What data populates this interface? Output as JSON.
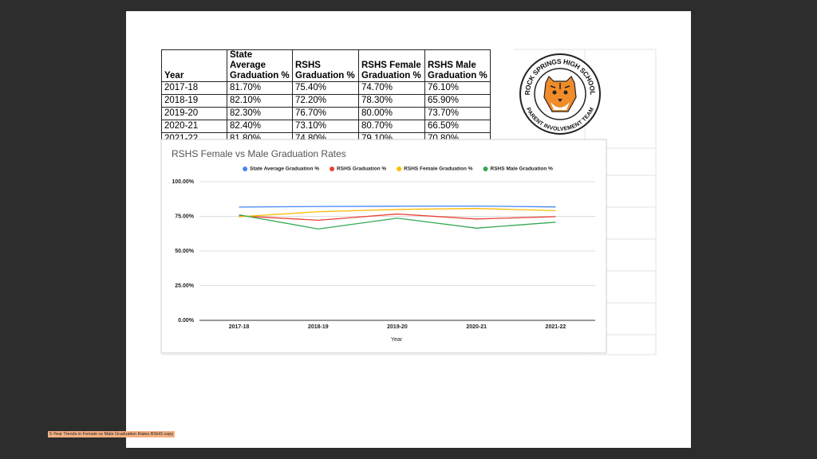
{
  "table": {
    "header": [
      "Year",
      "State Average Graduation %",
      "RSHS Graduation %",
      "RSHS Female Graduation %",
      "RSHS Male Graduation %"
    ],
    "rows": [
      [
        "2017-18",
        "81.70%",
        "75.40%",
        "74.70%",
        "76.10%"
      ],
      [
        "2018-19",
        "82.10%",
        "72.20%",
        "78.30%",
        "65.90%"
      ],
      [
        "2019-20",
        "82.30%",
        "76.70%",
        "80.00%",
        "73.70%"
      ],
      [
        "2020-21",
        "82.40%",
        "73.10%",
        "80.70%",
        "66.50%"
      ],
      [
        "2021-22",
        "81.80%",
        "74.80%",
        "79.10%",
        "70.80%"
      ]
    ]
  },
  "logo": {
    "top_text": "ROCK SPRINGS HIGH SCHOOL",
    "bottom_text": "PARENT INVOLVEMENT TEAM"
  },
  "chart_data": {
    "type": "line",
    "title": "RSHS Female vs Male Graduation Rates",
    "x_label": "Year",
    "categories": [
      "2017-18",
      "2018-19",
      "2019-20",
      "2020-21",
      "2021-22"
    ],
    "series": [
      {
        "name": "State Average Graduation %",
        "color": "#4285f4",
        "values": [
          81.7,
          82.1,
          82.3,
          82.4,
          81.8
        ]
      },
      {
        "name": "RSHS Graduation %",
        "color": "#ea4335",
        "values": [
          75.4,
          72.2,
          76.7,
          73.1,
          74.8
        ]
      },
      {
        "name": "RSHS Female Graduation %",
        "color": "#fbbc04",
        "values": [
          74.7,
          78.3,
          80.0,
          80.7,
          79.1
        ]
      },
      {
        "name": "RSHS Male Graduation %",
        "color": "#34a853",
        "values": [
          76.1,
          65.9,
          73.7,
          66.5,
          70.8
        ]
      }
    ],
    "ylim": [
      0,
      100
    ],
    "yticks": [
      {
        "value": 0,
        "label": "0.00%"
      },
      {
        "value": 25,
        "label": "25.00%"
      },
      {
        "value": 50,
        "label": "50.00%"
      },
      {
        "value": 75,
        "label": "75.00%"
      },
      {
        "value": 100,
        "label": "100.00%"
      }
    ],
    "grid": true,
    "legend": "top"
  },
  "file_label": "5-Year Trends in Female vs Male Graduation Rates RSHS copy"
}
